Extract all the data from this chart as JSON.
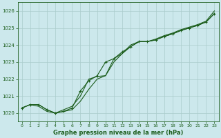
{
  "title": "Graphe pression niveau de la mer (hPa)",
  "bg_color": "#cce8ec",
  "grid_color": "#aacccc",
  "line_color": "#1a5c1a",
  "xlim": [
    -0.5,
    23.5
  ],
  "ylim": [
    1019.5,
    1026.5
  ],
  "yticks": [
    1020,
    1021,
    1022,
    1023,
    1024,
    1025,
    1026
  ],
  "xticks": [
    0,
    1,
    2,
    3,
    4,
    5,
    6,
    7,
    8,
    9,
    10,
    11,
    12,
    13,
    14,
    15,
    16,
    17,
    18,
    19,
    20,
    21,
    22,
    23
  ],
  "series1_x": [
    0,
    1,
    2,
    3,
    4,
    5,
    6,
    7,
    8,
    9,
    10,
    11,
    12,
    13,
    14,
    15,
    16,
    17,
    18,
    19,
    20,
    21,
    22,
    23
  ],
  "series1_y": [
    1020.3,
    1020.5,
    1020.5,
    1020.2,
    1020.0,
    1020.1,
    1020.3,
    1021.3,
    1021.9,
    1022.2,
    1023.0,
    1023.2,
    1023.6,
    1023.9,
    1024.2,
    1024.2,
    1024.3,
    1024.5,
    1024.65,
    1024.85,
    1025.0,
    1025.15,
    1025.35,
    1025.85
  ],
  "series2_x": [
    0,
    1,
    2,
    3,
    4,
    5,
    6,
    7,
    8,
    9,
    10,
    11,
    12,
    13,
    14,
    15,
    16,
    17,
    18,
    19,
    20,
    21,
    22,
    23
  ],
  "series2_y": [
    1020.3,
    1020.5,
    1020.4,
    1020.1,
    1020.0,
    1020.1,
    1020.2,
    1020.7,
    1021.4,
    1022.0,
    1022.2,
    1023.0,
    1023.5,
    1024.0,
    1024.2,
    1024.2,
    1024.35,
    1024.55,
    1024.7,
    1024.9,
    1025.05,
    1025.2,
    1025.4,
    1026.0
  ],
  "series3_x": [
    0,
    1,
    2,
    3,
    4,
    5,
    6,
    7,
    8,
    9,
    10,
    11,
    12,
    13,
    14,
    15,
    16,
    17,
    18,
    19,
    20,
    21,
    22,
    23
  ],
  "series3_y": [
    1020.3,
    1020.5,
    1020.5,
    1020.2,
    1020.0,
    1020.2,
    1020.4,
    1021.0,
    1022.0,
    1022.15,
    1022.2,
    1023.2,
    1023.5,
    1023.9,
    1024.2,
    1024.2,
    1024.3,
    1024.5,
    1024.65,
    1024.85,
    1025.0,
    1025.15,
    1025.35,
    1025.85
  ],
  "marker_x": [
    0,
    1,
    2,
    3,
    4,
    5,
    6,
    7,
    8,
    9,
    10,
    11,
    12,
    13,
    14,
    15,
    16,
    17,
    18,
    19,
    20,
    21,
    22,
    23
  ],
  "marker_y": [
    1020.3,
    1020.5,
    1020.5,
    1020.2,
    1020.0,
    1020.1,
    1020.3,
    1021.3,
    1021.9,
    1022.2,
    1023.0,
    1023.2,
    1023.6,
    1023.9,
    1024.2,
    1024.2,
    1024.3,
    1024.5,
    1024.65,
    1024.85,
    1025.0,
    1025.15,
    1025.35,
    1025.85
  ]
}
